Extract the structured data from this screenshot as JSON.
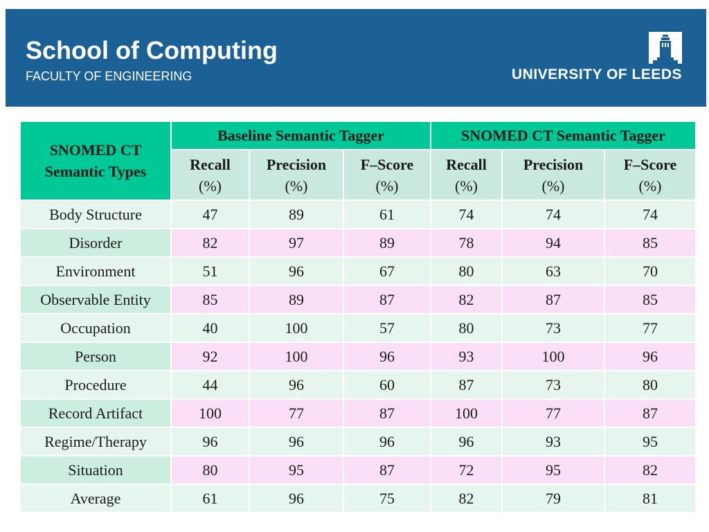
{
  "header": {
    "title": "School of Computing",
    "subtitle": "FACULTY OF ENGINEERING",
    "university": "UNIVERSITY OF LEEDS",
    "crest_icon": "university-tower-icon",
    "background_color": "#1b6196"
  },
  "table": {
    "corner_line1": "SNOMED CT",
    "corner_line2": "Semantic Types",
    "groups": [
      "Baseline Semantic Tagger",
      "SNOMED CT Semantic Tagger"
    ],
    "columns": [
      {
        "name": "Recall",
        "unit": "(%)"
      },
      {
        "name": "Precision",
        "unit": "(%)"
      },
      {
        "name": "F–Score",
        "unit": "(%)"
      },
      {
        "name": "Recall",
        "unit": "(%)"
      },
      {
        "name": "Precision",
        "unit": "(%)"
      },
      {
        "name": "F–Score",
        "unit": "(%)"
      }
    ],
    "rows": [
      {
        "label": "Body Structure",
        "values": [
          "47",
          "89",
          "61",
          "74",
          "74",
          "74"
        ]
      },
      {
        "label": "Disorder",
        "values": [
          "82",
          "97",
          "89",
          "78",
          "94",
          "85"
        ]
      },
      {
        "label": "Environment",
        "values": [
          "51",
          "96",
          "67",
          "80",
          "63",
          "70"
        ]
      },
      {
        "label": "Observable Entity",
        "values": [
          "85",
          "89",
          "87",
          "82",
          "87",
          "85"
        ]
      },
      {
        "label": "Occupation",
        "values": [
          "40",
          "100",
          "57",
          "80",
          "73",
          "77"
        ]
      },
      {
        "label": "Person",
        "values": [
          "92",
          "100",
          "96",
          "93",
          "100",
          "96"
        ]
      },
      {
        "label": "Procedure",
        "values": [
          "44",
          "96",
          "60",
          "87",
          "73",
          "80"
        ]
      },
      {
        "label": "Record Artifact",
        "values": [
          "100",
          "77",
          "87",
          "100",
          "77",
          "87"
        ]
      },
      {
        "label": "Regime/Therapy",
        "values": [
          "96",
          "96",
          "96",
          "96",
          "93",
          "95"
        ]
      },
      {
        "label": "Situation",
        "values": [
          "80",
          "95",
          "87",
          "72",
          "95",
          "82"
        ]
      },
      {
        "label": "Average",
        "values": [
          "61",
          "96",
          "75",
          "82",
          "79",
          "81"
        ]
      }
    ],
    "colors": {
      "header_green": "#00c896",
      "subheader_green": "#c9e9de",
      "row_light_green": "#e6f5ee",
      "row_pink": "#fbdff6"
    }
  }
}
